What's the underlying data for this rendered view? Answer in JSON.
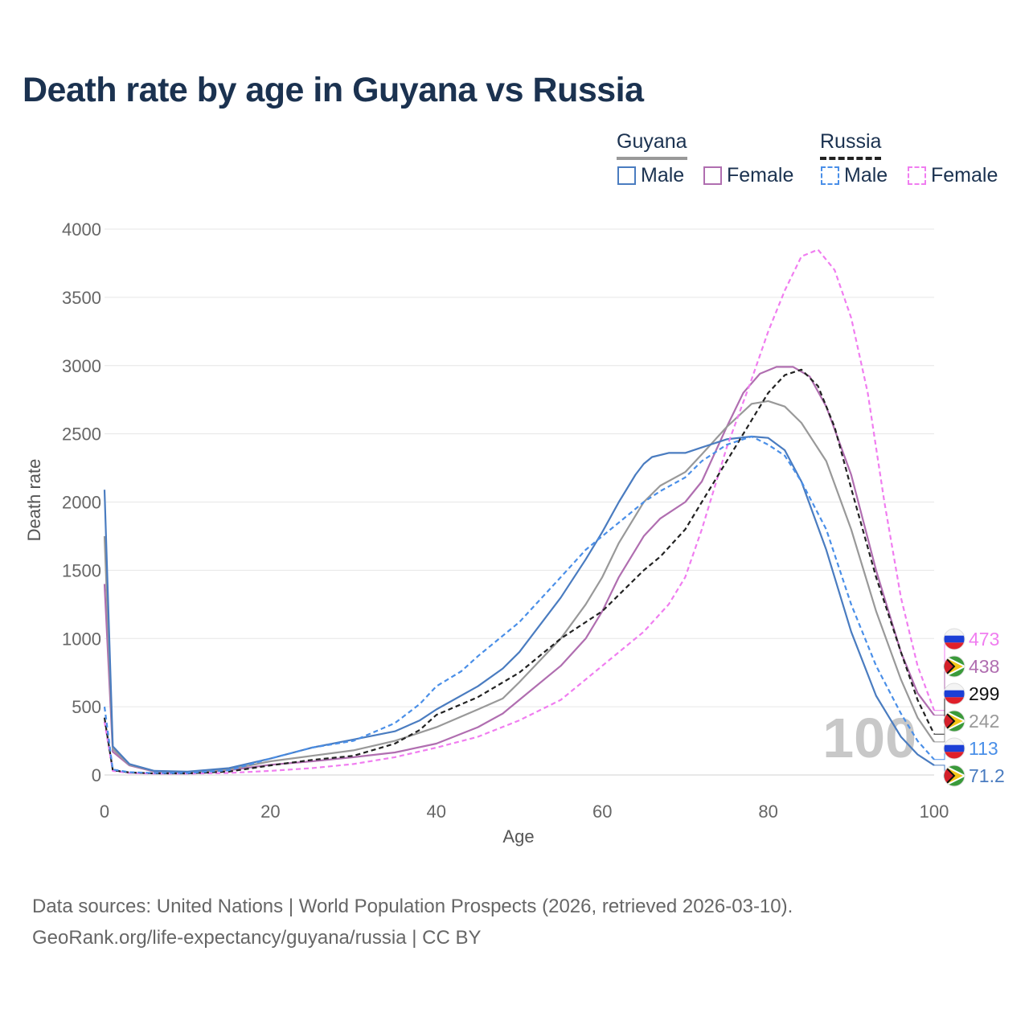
{
  "title": "Death rate by age in Guyana vs Russia",
  "legend": {
    "guyana": "Guyana",
    "russia": "Russia",
    "male": "Male",
    "female": "Female"
  },
  "footer": {
    "line1": "Data sources: United Nations | World Population Prospects (2026, retrieved 2026-03-10).",
    "line2": "GeoRank.org/life-expectancy/guyana/russia | CC BY"
  },
  "colors": {
    "guyana_male": "#4a7cc0",
    "guyana_female": "#b06eb0",
    "guyana_total": "#999999",
    "russia_male": "#4a8fe8",
    "russia_female": "#f07df0",
    "russia_total": "#222222"
  },
  "chart_data": {
    "type": "line",
    "title": "Death rate by age in Guyana vs Russia",
    "xlabel": "Age",
    "ylabel": "Death rate",
    "xlim": [
      0,
      100
    ],
    "ylim": [
      0,
      4000
    ],
    "xticks": [
      0,
      20,
      40,
      60,
      80,
      100
    ],
    "yticks": [
      0,
      500,
      1000,
      1500,
      2000,
      2500,
      3000,
      3500,
      4000
    ],
    "year_label": "100",
    "series": [
      {
        "name": "Guyana Female",
        "key": "guyana_female",
        "dash": false,
        "end_label": "438",
        "points": [
          [
            0,
            1400
          ],
          [
            1,
            170
          ],
          [
            3,
            70
          ],
          [
            6,
            25
          ],
          [
            10,
            20
          ],
          [
            15,
            35
          ],
          [
            20,
            75
          ],
          [
            25,
            100
          ],
          [
            30,
            130
          ],
          [
            35,
            165
          ],
          [
            40,
            230
          ],
          [
            45,
            350
          ],
          [
            48,
            450
          ],
          [
            50,
            550
          ],
          [
            55,
            800
          ],
          [
            58,
            1000
          ],
          [
            60,
            1200
          ],
          [
            62,
            1450
          ],
          [
            65,
            1750
          ],
          [
            67,
            1880
          ],
          [
            70,
            2000
          ],
          [
            72,
            2150
          ],
          [
            75,
            2550
          ],
          [
            77,
            2800
          ],
          [
            79,
            2940
          ],
          [
            81,
            2990
          ],
          [
            83,
            2990
          ],
          [
            85,
            2920
          ],
          [
            87,
            2700
          ],
          [
            90,
            2200
          ],
          [
            93,
            1500
          ],
          [
            96,
            900
          ],
          [
            98,
            600
          ],
          [
            100,
            438
          ]
        ]
      },
      {
        "name": "Guyana Total",
        "key": "guyana_total",
        "dash": false,
        "end_label": "242",
        "points": [
          [
            0,
            1750
          ],
          [
            1,
            190
          ],
          [
            3,
            75
          ],
          [
            6,
            28
          ],
          [
            10,
            22
          ],
          [
            15,
            40
          ],
          [
            20,
            100
          ],
          [
            25,
            140
          ],
          [
            30,
            180
          ],
          [
            35,
            250
          ],
          [
            40,
            350
          ],
          [
            45,
            480
          ],
          [
            48,
            560
          ],
          [
            50,
            680
          ],
          [
            55,
            1000
          ],
          [
            58,
            1250
          ],
          [
            60,
            1450
          ],
          [
            62,
            1700
          ],
          [
            65,
            2000
          ],
          [
            67,
            2120
          ],
          [
            70,
            2220
          ],
          [
            72,
            2350
          ],
          [
            75,
            2550
          ],
          [
            78,
            2720
          ],
          [
            80,
            2740
          ],
          [
            82,
            2700
          ],
          [
            84,
            2580
          ],
          [
            87,
            2300
          ],
          [
            90,
            1800
          ],
          [
            93,
            1200
          ],
          [
            96,
            700
          ],
          [
            98,
            420
          ],
          [
            100,
            242
          ]
        ]
      },
      {
        "name": "Guyana Male",
        "key": "guyana_male",
        "dash": false,
        "end_label": "71.2",
        "points": [
          [
            0,
            2090
          ],
          [
            1,
            210
          ],
          [
            3,
            80
          ],
          [
            6,
            30
          ],
          [
            10,
            25
          ],
          [
            15,
            50
          ],
          [
            20,
            120
          ],
          [
            25,
            200
          ],
          [
            30,
            260
          ],
          [
            35,
            320
          ],
          [
            38,
            400
          ],
          [
            40,
            480
          ],
          [
            45,
            650
          ],
          [
            48,
            780
          ],
          [
            50,
            900
          ],
          [
            55,
            1300
          ],
          [
            58,
            1580
          ],
          [
            60,
            1780
          ],
          [
            62,
            2000
          ],
          [
            64,
            2200
          ],
          [
            65,
            2280
          ],
          [
            66,
            2330
          ],
          [
            68,
            2360
          ],
          [
            70,
            2360
          ],
          [
            72,
            2400
          ],
          [
            75,
            2460
          ],
          [
            78,
            2480
          ],
          [
            80,
            2470
          ],
          [
            82,
            2380
          ],
          [
            84,
            2150
          ],
          [
            87,
            1650
          ],
          [
            90,
            1050
          ],
          [
            93,
            580
          ],
          [
            96,
            280
          ],
          [
            98,
            150
          ],
          [
            100,
            71.2
          ]
        ]
      },
      {
        "name": "Russia Female",
        "key": "russia_female",
        "dash": true,
        "end_label": "473",
        "points": [
          [
            0,
            390
          ],
          [
            1,
            30
          ],
          [
            3,
            15
          ],
          [
            6,
            10
          ],
          [
            10,
            10
          ],
          [
            15,
            15
          ],
          [
            20,
            30
          ],
          [
            25,
            50
          ],
          [
            30,
            80
          ],
          [
            35,
            130
          ],
          [
            40,
            200
          ],
          [
            45,
            280
          ],
          [
            50,
            400
          ],
          [
            55,
            550
          ],
          [
            60,
            800
          ],
          [
            65,
            1050
          ],
          [
            68,
            1250
          ],
          [
            70,
            1450
          ],
          [
            72,
            1800
          ],
          [
            75,
            2400
          ],
          [
            78,
            2900
          ],
          [
            80,
            3250
          ],
          [
            82,
            3550
          ],
          [
            84,
            3800
          ],
          [
            86,
            3850
          ],
          [
            88,
            3700
          ],
          [
            90,
            3350
          ],
          [
            92,
            2800
          ],
          [
            94,
            2000
          ],
          [
            96,
            1300
          ],
          [
            98,
            800
          ],
          [
            100,
            473
          ]
        ]
      },
      {
        "name": "Russia Total",
        "key": "russia_total",
        "dash": true,
        "end_label": "299",
        "points": [
          [
            0,
            420
          ],
          [
            1,
            35
          ],
          [
            3,
            18
          ],
          [
            6,
            12
          ],
          [
            10,
            12
          ],
          [
            15,
            25
          ],
          [
            20,
            70
          ],
          [
            25,
            110
          ],
          [
            30,
            140
          ],
          [
            35,
            230
          ],
          [
            38,
            330
          ],
          [
            40,
            440
          ],
          [
            45,
            570
          ],
          [
            50,
            750
          ],
          [
            55,
            1000
          ],
          [
            60,
            1200
          ],
          [
            63,
            1380
          ],
          [
            65,
            1500
          ],
          [
            67,
            1600
          ],
          [
            70,
            1800
          ],
          [
            72,
            2000
          ],
          [
            75,
            2300
          ],
          [
            78,
            2600
          ],
          [
            80,
            2800
          ],
          [
            82,
            2930
          ],
          [
            84,
            2970
          ],
          [
            86,
            2850
          ],
          [
            88,
            2550
          ],
          [
            90,
            2100
          ],
          [
            93,
            1450
          ],
          [
            96,
            900
          ],
          [
            98,
            550
          ],
          [
            100,
            299
          ]
        ]
      },
      {
        "name": "Russia Male",
        "key": "russia_male",
        "dash": true,
        "end_label": "113",
        "points": [
          [
            0,
            500
          ],
          [
            1,
            40
          ],
          [
            3,
            20
          ],
          [
            6,
            15
          ],
          [
            10,
            15
          ],
          [
            15,
            35
          ],
          [
            20,
            120
          ],
          [
            25,
            200
          ],
          [
            30,
            250
          ],
          [
            35,
            380
          ],
          [
            38,
            520
          ],
          [
            40,
            650
          ],
          [
            43,
            760
          ],
          [
            45,
            870
          ],
          [
            50,
            1120
          ],
          [
            55,
            1450
          ],
          [
            58,
            1650
          ],
          [
            60,
            1750
          ],
          [
            63,
            1900
          ],
          [
            65,
            2000
          ],
          [
            67,
            2080
          ],
          [
            70,
            2180
          ],
          [
            72,
            2300
          ],
          [
            75,
            2420
          ],
          [
            78,
            2480
          ],
          [
            80,
            2420
          ],
          [
            82,
            2340
          ],
          [
            84,
            2150
          ],
          [
            87,
            1800
          ],
          [
            90,
            1250
          ],
          [
            93,
            800
          ],
          [
            96,
            450
          ],
          [
            98,
            250
          ],
          [
            100,
            113
          ]
        ]
      }
    ]
  }
}
